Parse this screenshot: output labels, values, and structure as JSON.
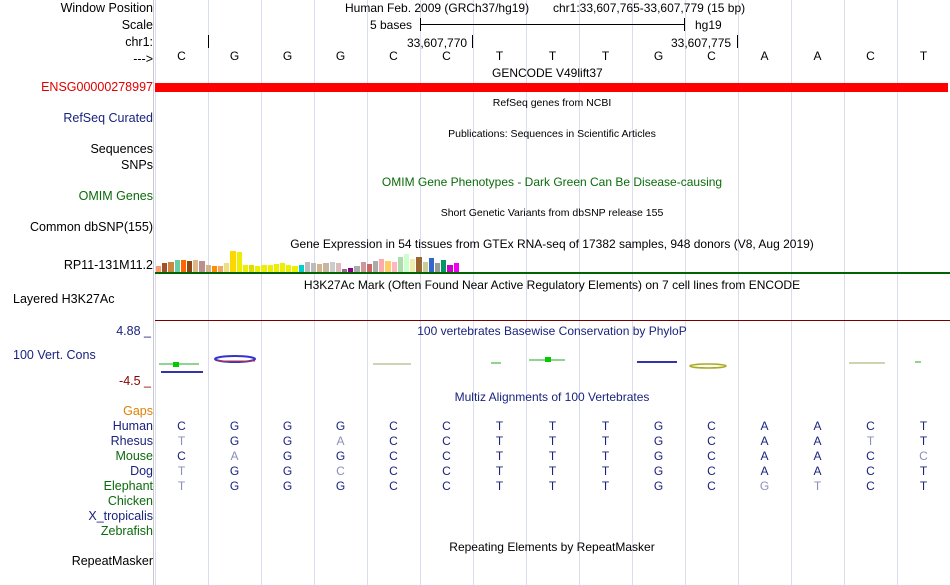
{
  "labels": {
    "window_position": "Window Position",
    "scale": "Scale",
    "chr": "chr1:",
    "arrow": "--->",
    "ensg": "ENSG00000278997",
    "refseq": "RefSeq Curated",
    "sequences": "Sequences",
    "snps": "SNPs",
    "omim": "OMIM Genes",
    "dbsnp": "Common dbSNP(155)",
    "rp11": "RP11-131M11.2",
    "h3k27ac": "Layered H3K27Ac",
    "cons": "100 Vert. Cons",
    "cons_max": "4.88 _",
    "cons_min": "-4.5 _",
    "gaps": "Gaps",
    "repeatmasker": "RepeatMasker"
  },
  "header": {
    "assembly": "Human Feb. 2009 (GRCh37/hg19)",
    "position": "chr1:33,607,765-33,607,779 (15 bp)",
    "scale_text": "5 bases",
    "scale_db": "hg19",
    "coord1": "33,607,770",
    "coord2": "33,607,775"
  },
  "bases": [
    "C",
    "G",
    "G",
    "G",
    "C",
    "C",
    "T",
    "T",
    "T",
    "G",
    "C",
    "A",
    "A",
    "C",
    "T"
  ],
  "tracks": {
    "gencode": "GENCODE V49lift37",
    "refseq": "RefSeq genes from NCBI",
    "publications": "Publications: Sequences in Scientific Articles",
    "omim": "OMIM Gene Phenotypes - Dark Green Can Be Disease-causing",
    "dbsnp": "Short Genetic Variants from dbSNP release 155",
    "gtex": "Gene Expression in 54 tissues from GTEx RNA-seq of 17382 samples, 948 donors (V8, Aug 2019)",
    "h3k27ac": "H3K27Ac Mark (Often Found Near Active Regulatory Elements) on 7 cell lines from ENCODE",
    "phylop": "100 vertebrates Basewise Conservation by PhyloP",
    "multiz": "Multiz Alignments of 100 Vertebrates",
    "repeatmasker": "Repeating Elements by RepeatMasker"
  },
  "gtex_colors": [
    "#ff9966",
    "#a0522d",
    "#cd853f",
    "#66cdaa",
    "#ff6600",
    "#8b4513",
    "#deb887",
    "#bc8f8f",
    "#d2b48c",
    "#ff8c00",
    "#f4a460",
    "#eedd82",
    "#ffd700",
    "#eeee00",
    "#eeee00",
    "#dddd00",
    "#eeee00",
    "#eeee00",
    "#eeee00",
    "#eeee00",
    "#eeee00",
    "#eeee00",
    "#eeee00",
    "#00cdcd",
    "#bbbbbb",
    "#bbbbbb",
    "#d2b48c",
    "#c8b4a0",
    "#cccccc",
    "#ddbbbb",
    "#996688",
    "#8b008b",
    "#aaaaaa",
    "#cc9999",
    "#cc6666",
    "#aaaaaa",
    "#ffaaaa",
    "#ffcc66",
    "#ffb6c1",
    "#aaddaa",
    "#ccffcc",
    "#eeeeaa",
    "#996633",
    "#cccc99",
    "#3366cc",
    "#999999",
    "#009966",
    "#cc00cc",
    "#ee00ee"
  ],
  "gtex_values": [
    6,
    9,
    10,
    12,
    12,
    11,
    12,
    11,
    7,
    6,
    6,
    9,
    21,
    20,
    7,
    7,
    6,
    7,
    7,
    8,
    9,
    7,
    6,
    7,
    10,
    9,
    8,
    9,
    10,
    9,
    3,
    4,
    6,
    10,
    8,
    11,
    13,
    11,
    10,
    15,
    18,
    13,
    15,
    10,
    14,
    9,
    12,
    7,
    9
  ],
  "alignment": {
    "species": [
      {
        "name": "Human",
        "color": "#1a237e",
        "bases": [
          "C",
          "G",
          "G",
          "G",
          "C",
          "C",
          "T",
          "T",
          "T",
          "G",
          "C",
          "A",
          "A",
          "C",
          "T"
        ],
        "faded": []
      },
      {
        "name": "Rhesus",
        "color": "#1a237e",
        "bases": [
          "T",
          "G",
          "G",
          "A",
          "C",
          "C",
          "T",
          "T",
          "T",
          "G",
          "C",
          "A",
          "A",
          "T",
          "T"
        ],
        "faded": [
          0,
          3,
          13
        ]
      },
      {
        "name": "Mouse",
        "color": "#0b6b0b",
        "bases": [
          "C",
          "A",
          "G",
          "G",
          "C",
          "C",
          "T",
          "T",
          "T",
          "G",
          "C",
          "A",
          "A",
          "C",
          "C"
        ],
        "faded": [
          1,
          14
        ]
      },
      {
        "name": "Dog",
        "color": "#1a237e",
        "bases": [
          "T",
          "G",
          "G",
          "C",
          "C",
          "C",
          "T",
          "T",
          "T",
          "G",
          "C",
          "A",
          "A",
          "C",
          "T"
        ],
        "faded": [
          0,
          3
        ]
      },
      {
        "name": "Elephant",
        "color": "#0b6b0b",
        "bases": [
          "T",
          "G",
          "G",
          "G",
          "C",
          "C",
          "T",
          "T",
          "T",
          "G",
          "C",
          "G",
          "T",
          "C",
          "T"
        ],
        "faded": [
          0,
          11,
          12
        ]
      },
      {
        "name": "Chicken",
        "color": "#0b6b0b",
        "bases": [],
        "faded": []
      },
      {
        "name": "X_tropicalis",
        "color": "#1a237e",
        "bases": [],
        "faded": []
      },
      {
        "name": "Zebrafish",
        "color": "#0b6b0b",
        "bases": [],
        "faded": []
      }
    ]
  },
  "colors": {
    "ensg_bar": "#ff0000",
    "h3k27ac_line": "#006400",
    "navy": "#1a237e",
    "green": "#0b6b0b"
  }
}
